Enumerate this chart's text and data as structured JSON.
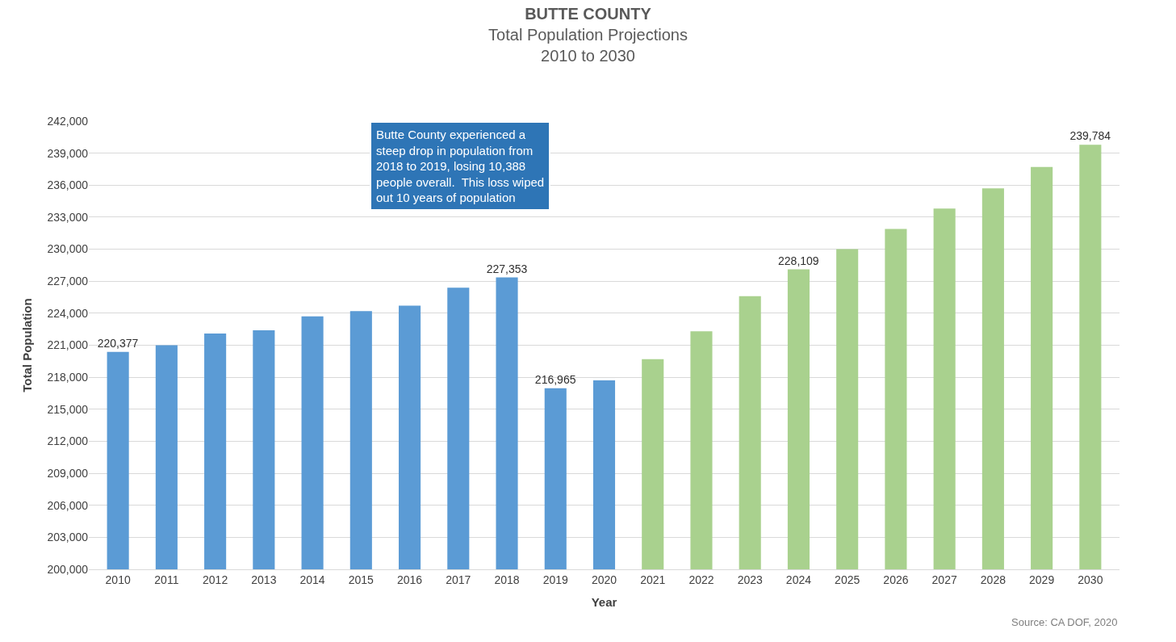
{
  "chart_data": {
    "type": "bar",
    "title": "BUTTE COUNTY",
    "subtitle": "Total Population Projections\n2010 to 2030",
    "xlabel": "Year",
    "ylabel": "Total Population",
    "categories": [
      "2010",
      "2011",
      "2012",
      "2013",
      "2014",
      "2015",
      "2016",
      "2017",
      "2018",
      "2019",
      "2020",
      "2021",
      "2022",
      "2023",
      "2024",
      "2025",
      "2026",
      "2027",
      "2028",
      "2029",
      "2030"
    ],
    "values": [
      220377,
      221000,
      222100,
      222400,
      223700,
      224200,
      224700,
      226400,
      227353,
      216965,
      217700,
      219700,
      222300,
      225600,
      228109,
      230000,
      231900,
      233800,
      235700,
      237700,
      239784
    ],
    "colors": [
      "#5b9bd5",
      "#5b9bd5",
      "#5b9bd5",
      "#5b9bd5",
      "#5b9bd5",
      "#5b9bd5",
      "#5b9bd5",
      "#5b9bd5",
      "#5b9bd5",
      "#5b9bd5",
      "#5b9bd5",
      "#a9d18e",
      "#a9d18e",
      "#a9d18e",
      "#a9d18e",
      "#a9d18e",
      "#a9d18e",
      "#a9d18e",
      "#a9d18e",
      "#a9d18e",
      "#a9d18e"
    ],
    "value_labels": [
      "220,377",
      null,
      null,
      null,
      null,
      null,
      null,
      null,
      "227,353",
      "216,965",
      null,
      null,
      null,
      null,
      "228,109",
      null,
      null,
      null,
      null,
      null,
      "239,784"
    ],
    "ylim": [
      200000,
      242000
    ],
    "yticks": [
      {
        "value": 200000,
        "label": "200,000"
      },
      {
        "value": 203000,
        "label": "203,000"
      },
      {
        "value": 206000,
        "label": "206,000"
      },
      {
        "value": 209000,
        "label": "209,000"
      },
      {
        "value": 212000,
        "label": "212,000"
      },
      {
        "value": 215000,
        "label": "215,000"
      },
      {
        "value": 218000,
        "label": "218,000"
      },
      {
        "value": 221000,
        "label": "221,000"
      },
      {
        "value": 224000,
        "label": "224,000"
      },
      {
        "value": 227000,
        "label": "227,000"
      },
      {
        "value": 230000,
        "label": "230,000"
      },
      {
        "value": 233000,
        "label": "233,000"
      },
      {
        "value": 236000,
        "label": "236,000"
      },
      {
        "value": 239000,
        "label": "239,000"
      },
      {
        "value": 242000,
        "label": "242,000"
      }
    ],
    "grid": "y",
    "annotations": [
      "Butte County experienced a\nsteep drop in population from\n2018 to 2019, losing 10,388\npeople overall.  This loss wiped\nout 10 years of population",
      "Source: CA DOF, 2020"
    ]
  }
}
